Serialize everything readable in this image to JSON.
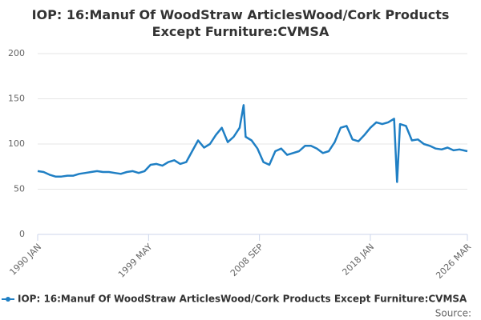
{
  "chart_data": {
    "type": "line",
    "title": "IOP: 16:Manuf Of WoodStraw ArticlesWood/Cork Products Except Furniture:CVMSA",
    "source": "Source:",
    "x": [
      "1990 JAN",
      "1990 JUL",
      "1991 JAN",
      "1991 JUL",
      "1992 JAN",
      "1992 JUL",
      "1993 JAN",
      "1993 JUL",
      "1994 JAN",
      "1994 JUL",
      "1995 JAN",
      "1995 JUL",
      "1996 JAN",
      "1996 JUL",
      "1997 JAN",
      "1997 JUL",
      "1998 JAN",
      "1998 JUL",
      "1999 JAN",
      "1999 JUL",
      "2000 JAN",
      "2000 JUL",
      "2001 JAN",
      "2001 JUL",
      "2002 JAN",
      "2002 JUL",
      "2003 JAN",
      "2003 JUL",
      "2004 JAN",
      "2004 JUL",
      "2005 JAN",
      "2005 JUL",
      "2006 JAN",
      "2006 JUL",
      "2007 JAN",
      "2007 MAY",
      "2007 JUL",
      "2008 JAN",
      "2008 JUL",
      "2009 JAN",
      "2009 JUL",
      "2010 JAN",
      "2010 JUL",
      "2011 JAN",
      "2011 JUL",
      "2012 JAN",
      "2012 JUL",
      "2013 JAN",
      "2013 JUL",
      "2014 JAN",
      "2014 JUL",
      "2015 JAN",
      "2015 JUL",
      "2016 JAN",
      "2016 JUL",
      "2017 JAN",
      "2017 JUL",
      "2018 JAN",
      "2018 JUL",
      "2019 JAN",
      "2019 JUL",
      "2020 JAN",
      "2020 APR",
      "2020 JUL",
      "2021 JAN",
      "2021 JUL",
      "2022 JAN",
      "2022 JUL",
      "2023 JAN",
      "2023 JUL",
      "2024 JAN",
      "2024 JUL",
      "2025 JAN",
      "2025 JUL",
      "2026 MAR"
    ],
    "series": [
      {
        "name": "IOP: 16:Manuf Of WoodStraw ArticlesWood/Cork Products Except Furniture:CVMSA",
        "color": "#1f7fc4",
        "values": [
          70,
          69,
          66,
          64,
          64,
          65,
          65,
          67,
          68,
          69,
          70,
          69,
          69,
          68,
          67,
          69,
          70,
          68,
          70,
          77,
          78,
          76,
          80,
          82,
          78,
          80,
          92,
          104,
          96,
          100,
          110,
          118,
          102,
          108,
          118,
          143,
          108,
          104,
          95,
          80,
          77,
          92,
          95,
          88,
          90,
          92,
          98,
          98,
          95,
          90,
          92,
          102,
          118,
          120,
          105,
          103,
          110,
          118,
          124,
          122,
          124,
          128,
          58,
          122,
          120,
          104,
          105,
          100,
          98,
          95,
          94,
          96,
          93,
          94,
          92
        ]
      }
    ],
    "xlim": [
      "1990 JAN",
      "2026 MAR"
    ],
    "xticks": [
      "1990 JAN",
      "1999 MAY",
      "2008 SEP",
      "2018 JAN",
      "2026 MAR"
    ],
    "ylim": [
      0,
      200
    ],
    "yticks": [
      0,
      50,
      100,
      150,
      200
    ],
    "grid": true
  }
}
